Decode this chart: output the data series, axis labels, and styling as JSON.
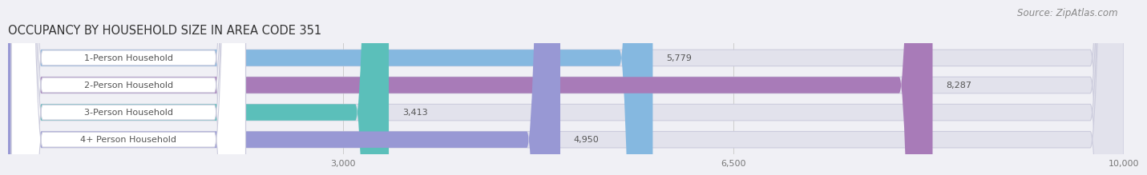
{
  "title": "OCCUPANCY BY HOUSEHOLD SIZE IN AREA CODE 351",
  "source": "Source: ZipAtlas.com",
  "categories": [
    "1-Person Household",
    "2-Person Household",
    "3-Person Household",
    "4+ Person Household"
  ],
  "values": [
    5779,
    8287,
    3413,
    4950
  ],
  "bar_colors": [
    "#85b8e0",
    "#a87bb8",
    "#5bbfba",
    "#9898d4"
  ],
  "background_color": "#f0f0f5",
  "bar_bg_color": "#e2e2ec",
  "label_bg_color": "#ffffff",
  "label_text_color": "#555555",
  "value_text_color": "#555555",
  "title_color": "#333333",
  "source_color": "#888888",
  "xlim_min": 0,
  "xlim_max": 10000,
  "xticks": [
    3000,
    6500,
    10000
  ],
  "xtick_labels": [
    "3,000",
    "6,500",
    "10,000"
  ],
  "title_fontsize": 10.5,
  "source_fontsize": 8.5,
  "label_fontsize": 8,
  "value_fontsize": 8
}
